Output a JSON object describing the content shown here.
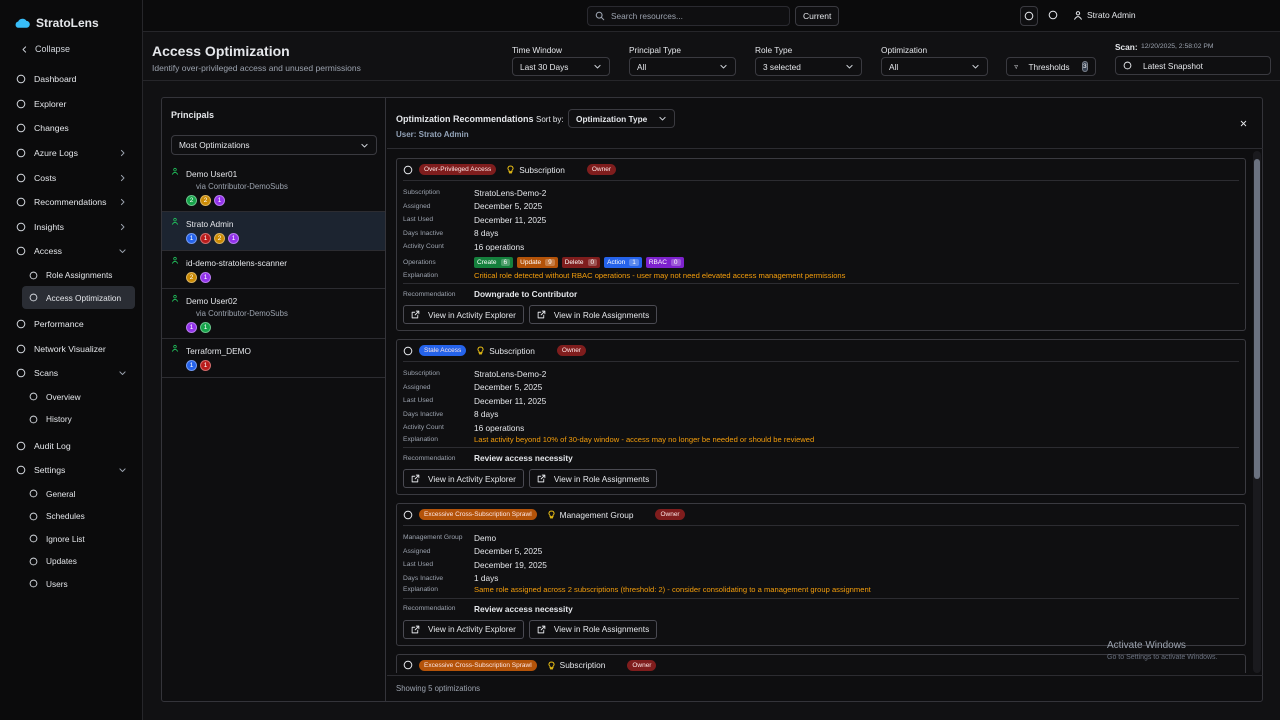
{
  "sidebar": {
    "brand": "StratoLens",
    "collapse": "Collapse",
    "items": [
      {
        "label": "Dashboard"
      },
      {
        "label": "Explorer"
      },
      {
        "label": "Changes"
      },
      {
        "label": "Azure Logs",
        "collapsed": true
      },
      {
        "label": "Costs",
        "collapsed": true
      },
      {
        "label": "Recommendations",
        "collapsed": true
      },
      {
        "label": "Insights",
        "collapsed": true
      },
      {
        "label": "Access",
        "children": [
          {
            "label": "Role Assignments"
          },
          {
            "label": "Access Optimization",
            "active": true
          }
        ]
      },
      {
        "label": "Performance"
      },
      {
        "label": "Network Visualizer"
      },
      {
        "label": "Scans",
        "children": [
          {
            "label": "Overview"
          },
          {
            "label": "History"
          }
        ]
      },
      {
        "label": "Audit Log"
      },
      {
        "label": "Settings",
        "children": [
          {
            "label": "General"
          },
          {
            "label": "Schedules"
          },
          {
            "label": "Ignore List"
          },
          {
            "label": "Updates"
          },
          {
            "label": "Users"
          }
        ]
      }
    ]
  },
  "topbar": {
    "search_placeholder": "Search resources...",
    "current": "Current",
    "user": "Strato Admin"
  },
  "header": {
    "title": "Access Optimization",
    "subtitle": "Identify over-privileged access and unused permissions",
    "filters": [
      {
        "label": "Time Window",
        "value": "Last 30 Days"
      },
      {
        "label": "Principal Type",
        "value": "All"
      },
      {
        "label": "Role Type",
        "value": "3 selected"
      },
      {
        "label": "Optimization",
        "value": "All"
      }
    ],
    "thresholds": {
      "label": "Thresholds",
      "count": 3
    },
    "scan": {
      "label": "Scan:",
      "time": "12/20/2025, 2:58:02 PM",
      "snapshot": "Latest Snapshot"
    }
  },
  "principals": {
    "title": "Principals",
    "sort": "Most Optimizations",
    "items": [
      {
        "name": "Demo User01",
        "via": "via Contributor-DemoSubs",
        "badges": [
          {
            "count": 2,
            "color": "#16a34a"
          },
          {
            "count": 2,
            "color": "#ca8a04"
          },
          {
            "count": 1,
            "color": "#9333ea"
          }
        ]
      },
      {
        "name": "Strato Admin",
        "selected": true,
        "badges": [
          {
            "count": 1,
            "color": "#2563eb"
          },
          {
            "count": 1,
            "color": "#b91c1c"
          },
          {
            "count": 2,
            "color": "#ca8a04"
          },
          {
            "count": 1,
            "color": "#9333ea"
          }
        ]
      },
      {
        "name": "id-demo-stratolens-scanner",
        "badges": [
          {
            "count": 2,
            "color": "#ca8a04"
          },
          {
            "count": 1,
            "color": "#9333ea"
          }
        ]
      },
      {
        "name": "Demo User02",
        "via": "via Contributor-DemoSubs",
        "badges": [
          {
            "count": 1,
            "color": "#9333ea"
          },
          {
            "count": 1,
            "color": "#16a34a"
          }
        ]
      },
      {
        "name": "Terraform_DEMO",
        "badges": [
          {
            "count": 1,
            "color": "#2563eb"
          },
          {
            "count": 1,
            "color": "#b91c1c"
          }
        ]
      }
    ]
  },
  "recommendations": {
    "title": "Optimization Recommendations",
    "sort_label": "Sort by:",
    "sort": "Optimization Type",
    "user": "User: Strato Admin",
    "footer": "Showing 5 optimizations",
    "cards": [
      {
        "tag": "Over-Privileged Access",
        "tag_color": "#7f1d1d",
        "scope": "Subscription",
        "role": "Owner",
        "fields": [
          {
            "label": "Subscription",
            "value": "StratoLens-Demo-2"
          },
          {
            "label": "Assigned",
            "value": "December 5, 2025"
          },
          {
            "label": "Last Used",
            "value": "December 11, 2025"
          },
          {
            "label": "Days Inactive",
            "value": "8 days"
          },
          {
            "label": "Activity Count",
            "value": "16 operations"
          }
        ],
        "operations": {
          "label": "Operations",
          "items": [
            {
              "name": "Create",
              "count": 6,
              "color": "#15803d"
            },
            {
              "name": "Update",
              "count": 9,
              "color": "#b45309"
            },
            {
              "name": "Delete",
              "count": 0,
              "color": "#7f1d1d"
            },
            {
              "name": "Action",
              "count": 1,
              "color": "#2563eb"
            },
            {
              "name": "RBAC",
              "count": 0,
              "color": "#7e22ce"
            }
          ]
        },
        "explanation": {
          "label": "Explanation",
          "text": "Critical role detected without RBAC operations - user may not need elevated access management permissions"
        },
        "recommendation": {
          "label": "Recommendation",
          "text": "Downgrade to Contributor"
        },
        "actions": [
          "View in Activity Explorer",
          "View in Role Assignments"
        ]
      },
      {
        "tag": "Stale Access",
        "tag_color": "#2563eb",
        "scope": "Subscription",
        "role": "Owner",
        "fields": [
          {
            "label": "Subscription",
            "value": "StratoLens-Demo-2"
          },
          {
            "label": "Assigned",
            "value": "December 5, 2025"
          },
          {
            "label": "Last Used",
            "value": "December 11, 2025"
          },
          {
            "label": "Days Inactive",
            "value": "8 days"
          },
          {
            "label": "Activity Count",
            "value": "16 operations"
          }
        ],
        "explanation": {
          "label": "Explanation",
          "text": "Last activity beyond 10% of 30-day window - access may no longer be needed or should be reviewed"
        },
        "recommendation": {
          "label": "Recommendation",
          "text": "Review access necessity"
        },
        "actions": [
          "View in Activity Explorer",
          "View in Role Assignments"
        ]
      },
      {
        "tag": "Excessive Cross-Subscription Sprawl",
        "tag_color": "#b45309",
        "scope": "Management Group",
        "role": "Owner",
        "fields": [
          {
            "label": "Management Group",
            "value": "Demo"
          },
          {
            "label": "Assigned",
            "value": "December 5, 2025"
          },
          {
            "label": "Last Used",
            "value": "December 19, 2025"
          },
          {
            "label": "Days Inactive",
            "value": "1 days"
          }
        ],
        "explanation": {
          "label": "Explanation",
          "text": "Same role assigned across 2 subscriptions (threshold: 2) - consider consolidating to a management group assignment"
        },
        "recommendation": {
          "label": "Recommendation",
          "text": "Review access necessity"
        },
        "actions": [
          "View in Activity Explorer",
          "View in Role Assignments"
        ]
      },
      {
        "tag": "Excessive Cross-Subscription Sprawl",
        "tag_color": "#b45309",
        "scope": "Subscription",
        "role": "Owner"
      }
    ]
  },
  "watermark": {
    "title": "Activate Windows",
    "text": "Go to Settings to activate Windows."
  }
}
